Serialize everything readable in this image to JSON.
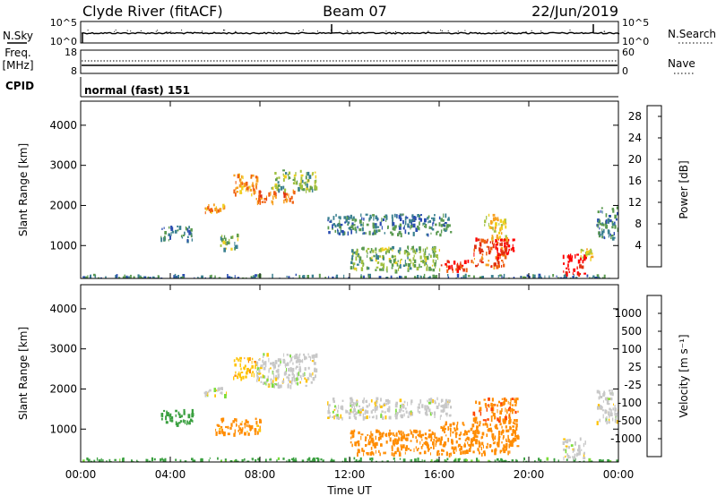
{
  "header": {
    "station": "Clyde River (fitACF)",
    "beam": "Beam 07",
    "date": "22/Jun/2019"
  },
  "noise_panel": {
    "left_label": "N.Sky",
    "right_label": "N.Search",
    "left_ticks": [
      "10^5",
      "10^0"
    ],
    "right_ticks": [
      "10^5",
      "10^0"
    ]
  },
  "freq_panel": {
    "left_label": "Freq.",
    "left_unit": "[MHz]",
    "right_label": "Nave",
    "left_ticks": [
      "18",
      "8"
    ],
    "right_ticks": [
      "60",
      "0"
    ]
  },
  "cpid": {
    "label": "CPID",
    "value": "normal (fast) 151"
  },
  "colors": {
    "power_scale": [
      "#1a1aff",
      "#2a4db0",
      "#3a8090",
      "#5a9a50",
      "#a0c040",
      "#f0d020",
      "#f7a020",
      "#f06010",
      "#e03010",
      "#ff0000"
    ],
    "velocity_scale": [
      "#ff0000",
      "#ff4500",
      "#ff8c00",
      "#ffc300",
      "#c8c8c8",
      "#7cdd3c",
      "#3aa040",
      "#2a7a90",
      "#1a3adf"
    ]
  },
  "chart_data": [
    {
      "type": "heatmap",
      "panel": "power",
      "xlabel": "Time UT",
      "ylabel": "Slant Range [km]",
      "x_ticks": [
        "00:00",
        "04:00",
        "08:00",
        "12:00",
        "16:00",
        "20:00",
        "00:00"
      ],
      "y_ticks": [
        1000,
        2000,
        3000,
        4000
      ],
      "xlim": [
        0,
        24
      ],
      "ylim": [
        180,
        4600
      ],
      "colorbar": {
        "label": "Power [dB]",
        "ticks": [
          "4",
          "8",
          "12",
          "16",
          "20",
          "24",
          "28"
        ],
        "range": [
          0,
          30
        ]
      },
      "regions": [
        {
          "t": [
            0.0,
            24.0
          ],
          "r": [
            180,
            300
          ],
          "power": 8
        },
        {
          "t": [
            3.5,
            5.0
          ],
          "r": [
            1150,
            1500
          ],
          "power": 8
        },
        {
          "t": [
            5.5,
            6.5
          ],
          "r": [
            1850,
            2050
          ],
          "power": 20
        },
        {
          "t": [
            6.2,
            7.0
          ],
          "r": [
            900,
            1300
          ],
          "power": 12
        },
        {
          "t": [
            6.8,
            8.0
          ],
          "r": [
            2300,
            2800
          ],
          "power": 20
        },
        {
          "t": [
            7.8,
            9.5
          ],
          "r": [
            2100,
            2400
          ],
          "power": 22
        },
        {
          "t": [
            8.5,
            10.5
          ],
          "r": [
            2400,
            2900
          ],
          "power": 12
        },
        {
          "t": [
            11.0,
            16.5
          ],
          "r": [
            1300,
            1800
          ],
          "power": 8
        },
        {
          "t": [
            12.0,
            16.0
          ],
          "r": [
            400,
            1000
          ],
          "power": 12
        },
        {
          "t": [
            16.0,
            17.5
          ],
          "r": [
            400,
            650
          ],
          "power": 26
        },
        {
          "t": [
            17.5,
            19.0
          ],
          "r": [
            500,
            1200
          ],
          "power": 24
        },
        {
          "t": [
            18.5,
            19.3
          ],
          "r": [
            700,
            1200
          ],
          "power": 30
        },
        {
          "t": [
            18.0,
            19.0
          ],
          "r": [
            1200,
            1800
          ],
          "power": 16
        },
        {
          "t": [
            21.5,
            22.5
          ],
          "r": [
            300,
            800
          ],
          "power": 30
        },
        {
          "t": [
            22.3,
            22.8
          ],
          "r": [
            700,
            950
          ],
          "power": 16
        },
        {
          "t": [
            23.0,
            24.0
          ],
          "r": [
            1200,
            2000
          ],
          "power": 8
        }
      ]
    },
    {
      "type": "heatmap",
      "panel": "velocity",
      "xlabel": "Time UT",
      "ylabel": "Slant Range [km]",
      "x_ticks": [
        "00:00",
        "04:00",
        "08:00",
        "12:00",
        "16:00",
        "20:00",
        "00:00"
      ],
      "y_ticks": [
        1000,
        2000,
        3000,
        4000
      ],
      "xlim": [
        0,
        24
      ],
      "ylim": [
        180,
        4600
      ],
      "colorbar": {
        "label": "Velocity [m s⁻¹]",
        "ticks": [
          "1000",
          "500",
          "100",
          "25",
          "-25",
          "-100",
          "-500",
          "-1000"
        ],
        "range": [
          -1000,
          1000
        ]
      },
      "regions": [
        {
          "t": [
            0.0,
            24.0
          ],
          "r": [
            180,
            300
          ],
          "velocity": 150
        },
        {
          "t": [
            3.5,
            5.0
          ],
          "r": [
            1150,
            1500
          ],
          "velocity": 300
        },
        {
          "t": [
            5.5,
            6.5
          ],
          "r": [
            1850,
            2050
          ],
          "velocity": 0
        },
        {
          "t": [
            6.0,
            8.0
          ],
          "r": [
            900,
            1300
          ],
          "velocity": -150
        },
        {
          "t": [
            6.8,
            8.0
          ],
          "r": [
            2300,
            2800
          ],
          "velocity": -80
        },
        {
          "t": [
            7.8,
            10.5
          ],
          "r": [
            2100,
            2900
          ],
          "velocity": 0
        },
        {
          "t": [
            11.0,
            16.5
          ],
          "r": [
            1300,
            1800
          ],
          "velocity": 0
        },
        {
          "t": [
            12.0,
            16.0
          ],
          "r": [
            400,
            1000
          ],
          "velocity": -200
        },
        {
          "t": [
            16.0,
            19.5
          ],
          "r": [
            400,
            1200
          ],
          "velocity": -300
        },
        {
          "t": [
            17.5,
            19.5
          ],
          "r": [
            1200,
            1800
          ],
          "velocity": -400
        },
        {
          "t": [
            21.5,
            22.5
          ],
          "r": [
            300,
            800
          ],
          "velocity": 0
        },
        {
          "t": [
            23.0,
            24.0
          ],
          "r": [
            1200,
            2000
          ],
          "velocity": 0
        }
      ]
    }
  ]
}
